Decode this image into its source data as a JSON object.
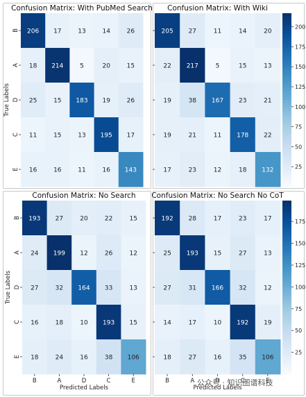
{
  "chart_data": [
    {
      "type": "heatmap",
      "title": "Confusion Matrix: With PubMed Search",
      "ylabel": "True Labels",
      "xlabel": "",
      "row_labels": [
        "B",
        "A",
        "D",
        "C",
        "E"
      ],
      "col_labels": [],
      "values": [
        [
          206,
          17,
          13,
          14,
          26
        ],
        [
          18,
          214,
          5,
          20,
          15
        ],
        [
          25,
          15,
          183,
          19,
          26
        ],
        [
          11,
          15,
          13,
          195,
          17
        ],
        [
          16,
          16,
          11,
          16,
          143
        ]
      ]
    },
    {
      "type": "heatmap",
      "title": "Confusion Matrix: With Wiki",
      "ylabel": "",
      "xlabel": "",
      "row_labels": [],
      "col_labels": [],
      "values": [
        [
          205,
          27,
          11,
          14,
          20
        ],
        [
          22,
          217,
          5,
          15,
          13
        ],
        [
          19,
          38,
          167,
          23,
          21
        ],
        [
          19,
          21,
          11,
          178,
          22
        ],
        [
          17,
          23,
          12,
          18,
          132
        ]
      ],
      "colorbar": {
        "min": 0,
        "max": 217,
        "ticks": [
          25,
          50,
          75,
          100,
          125,
          150,
          175,
          200
        ]
      }
    },
    {
      "type": "heatmap",
      "title": "Confusion Matrix: No Search",
      "ylabel": "True Labels",
      "xlabel": "Predicted Labels",
      "row_labels": [
        "B",
        "A",
        "D",
        "C",
        "E"
      ],
      "col_labels": [
        "B",
        "A",
        "D",
        "C",
        "E"
      ],
      "values": [
        [
          193,
          27,
          20,
          22,
          15
        ],
        [
          24,
          199,
          12,
          26,
          12
        ],
        [
          27,
          32,
          164,
          33,
          13
        ],
        [
          16,
          18,
          10,
          193,
          15
        ],
        [
          18,
          24,
          16,
          38,
          106
        ]
      ]
    },
    {
      "type": "heatmap",
      "title": "Confusion Matrix: No Search No CoT",
      "ylabel": "",
      "xlabel": "Predicted Labels",
      "row_labels": [],
      "col_labels": [
        "B",
        "A",
        "D",
        "C",
        "E"
      ],
      "values": [
        [
          192,
          28,
          17,
          23,
          17
        ],
        [
          25,
          193,
          15,
          27,
          13
        ],
        [
          27,
          31,
          166,
          32,
          12
        ],
        [
          14,
          17,
          10,
          192,
          19
        ],
        [
          18,
          27,
          16,
          35,
          106
        ]
      ],
      "colorbar": {
        "min": 0,
        "max": 199,
        "ticks": [
          25,
          50,
          75,
          100,
          125,
          150,
          175
        ]
      }
    }
  ],
  "watermark": "公众号 · 知识图谱科技",
  "colormap": "Blues"
}
